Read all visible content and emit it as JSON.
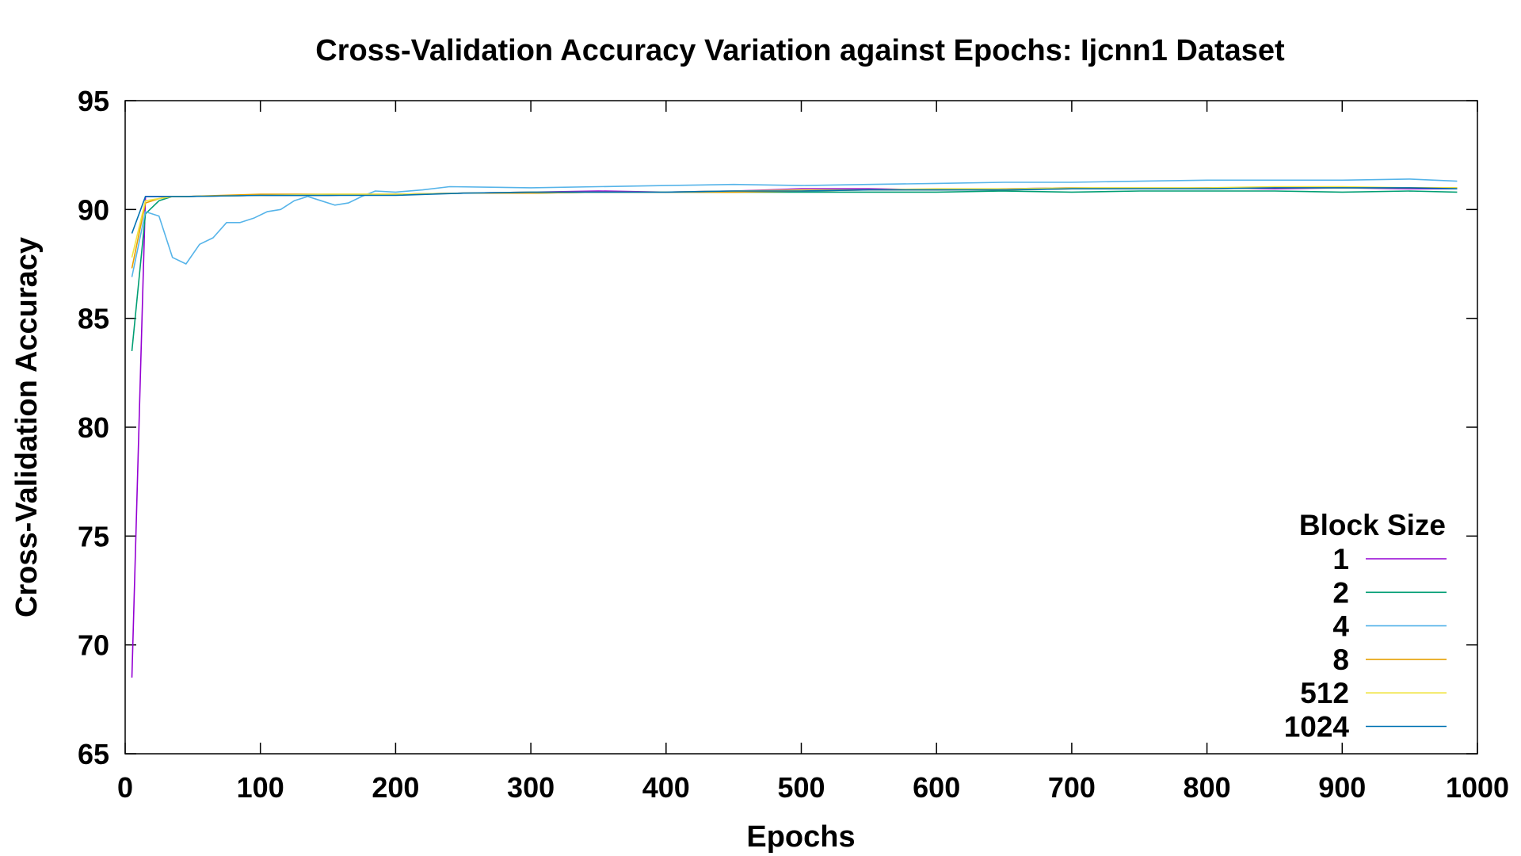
{
  "chart_data": {
    "type": "line",
    "title": "Cross-Validation Accuracy Variation against Epochs: Ijcnn1 Dataset",
    "xlabel": "Epochs",
    "ylabel": "Cross-Validation Accuracy",
    "xlim": [
      0,
      1000
    ],
    "ylim": [
      65,
      95
    ],
    "xticks": [
      0,
      100,
      200,
      300,
      400,
      500,
      600,
      700,
      800,
      900,
      1000
    ],
    "yticks": [
      65,
      70,
      75,
      80,
      85,
      90,
      95
    ],
    "grid": false,
    "legend": {
      "title": "Block Size",
      "position": "bottom-right"
    },
    "series": [
      {
        "name": "1",
        "color": "#9400d3",
        "x": [
          5,
          15,
          25,
          35,
          45,
          100,
          150,
          200,
          250,
          300,
          350,
          400,
          450,
          500,
          550,
          600,
          650,
          700,
          750,
          800,
          850,
          900,
          950,
          985
        ],
        "y": [
          68.5,
          90.6,
          90.6,
          90.6,
          90.6,
          90.65,
          90.65,
          90.7,
          90.75,
          90.8,
          90.85,
          90.8,
          90.85,
          90.95,
          90.95,
          90.9,
          90.95,
          91.0,
          90.95,
          91.0,
          90.95,
          91.0,
          90.95,
          90.95
        ]
      },
      {
        "name": "2",
        "color": "#009e73",
        "x": [
          5,
          15,
          25,
          35,
          45,
          100,
          150,
          200,
          250,
          300,
          350,
          400,
          450,
          500,
          550,
          600,
          650,
          700,
          750,
          800,
          850,
          900,
          950,
          985
        ],
        "y": [
          83.5,
          89.8,
          90.4,
          90.6,
          90.6,
          90.65,
          90.65,
          90.7,
          90.75,
          90.75,
          90.8,
          90.8,
          90.8,
          90.8,
          90.8,
          90.8,
          90.85,
          90.8,
          90.85,
          90.85,
          90.85,
          90.8,
          90.85,
          90.8
        ]
      },
      {
        "name": "4",
        "color": "#56b4e9",
        "x": [
          5,
          15,
          25,
          35,
          45,
          55,
          65,
          75,
          85,
          95,
          105,
          115,
          125,
          135,
          145,
          155,
          165,
          175,
          185,
          200,
          220,
          240,
          300,
          350,
          400,
          450,
          500,
          550,
          600,
          650,
          700,
          750,
          800,
          850,
          900,
          950,
          985
        ],
        "y": [
          86.9,
          89.9,
          89.7,
          87.8,
          87.5,
          88.4,
          88.7,
          89.4,
          89.4,
          89.6,
          89.9,
          90.0,
          90.4,
          90.6,
          90.4,
          90.2,
          90.3,
          90.6,
          90.85,
          90.8,
          90.9,
          91.05,
          91.0,
          91.05,
          91.1,
          91.15,
          91.1,
          91.15,
          91.2,
          91.25,
          91.25,
          91.3,
          91.35,
          91.35,
          91.35,
          91.4,
          91.3
        ]
      },
      {
        "name": "8",
        "color": "#e69f00",
        "x": [
          5,
          15,
          25,
          35,
          45,
          100,
          150,
          200,
          250,
          300,
          350,
          400,
          450,
          500,
          550,
          600,
          650,
          700,
          750,
          800,
          850,
          900,
          950,
          985
        ],
        "y": [
          87.3,
          90.3,
          90.5,
          90.6,
          90.6,
          90.7,
          90.7,
          90.7,
          90.75,
          90.75,
          90.8,
          90.8,
          90.8,
          90.85,
          90.9,
          90.9,
          90.9,
          90.95,
          90.95,
          90.95,
          91.0,
          91.0,
          91.0,
          91.0
        ]
      },
      {
        "name": "512",
        "color": "#f0e442",
        "x": [
          5,
          15,
          25,
          35,
          45,
          100,
          150,
          200,
          250,
          300,
          350,
          400,
          450,
          500,
          550,
          600,
          650,
          700,
          750,
          800,
          850,
          900,
          950,
          985
        ],
        "y": [
          87.8,
          90.4,
          90.5,
          90.6,
          90.6,
          90.65,
          90.7,
          90.7,
          90.75,
          90.8,
          90.8,
          90.8,
          90.85,
          90.9,
          90.9,
          90.95,
          90.95,
          91.0,
          91.0,
          91.0,
          91.05,
          91.05,
          91.0,
          91.0
        ]
      },
      {
        "name": "1024",
        "color": "#0072b2",
        "x": [
          5,
          15,
          25,
          35,
          45,
          100,
          150,
          200,
          250,
          300,
          350,
          400,
          450,
          500,
          550,
          600,
          650,
          700,
          750,
          800,
          850,
          900,
          950,
          985
        ],
        "y": [
          88.9,
          90.6,
          90.6,
          90.6,
          90.6,
          90.65,
          90.65,
          90.65,
          90.75,
          90.8,
          90.8,
          90.8,
          90.85,
          90.85,
          90.9,
          90.9,
          90.9,
          90.95,
          90.95,
          90.95,
          91.0,
          91.0,
          91.0,
          90.95
        ]
      }
    ]
  }
}
